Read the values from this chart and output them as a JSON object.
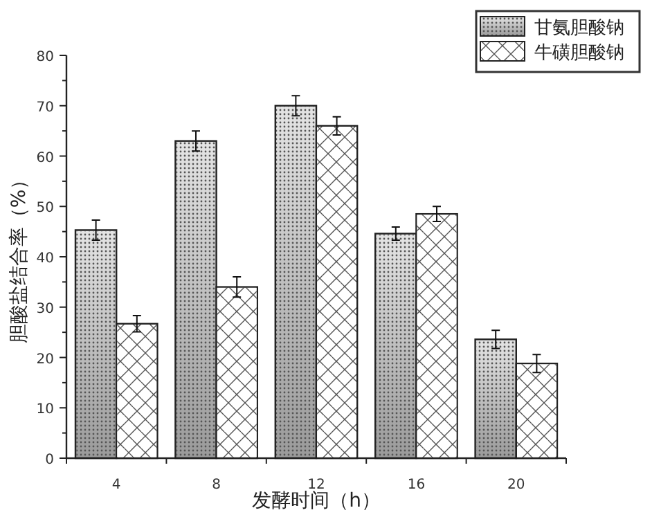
{
  "chart_data": {
    "type": "bar",
    "xlabel": "发酵时间（h）",
    "ylabel": "胆酸盐结合率（%）",
    "categories": [
      "4",
      "8",
      "12",
      "16",
      "20"
    ],
    "series": [
      {
        "name": "甘氨胆酸钠",
        "color": "#9a9a9a",
        "values": [
          45.3,
          63,
          70,
          44.6,
          23.6
        ],
        "errors": [
          2,
          2,
          2,
          1.3,
          1.8
        ]
      },
      {
        "name": "牛磺胆酸钠",
        "color": "#ffffff",
        "values": [
          26.7,
          34,
          66,
          48.5,
          18.8
        ],
        "errors": [
          1.6,
          2,
          1.8,
          1.5,
          1.8
        ]
      }
    ],
    "ylim": [
      0,
      80
    ],
    "yticks": [
      0,
      {
        "value": 5,
        "label": null
      },
      10,
      {
        "value": 15,
        "label": null
      },
      20,
      {
        "value": 25,
        "label": null
      },
      30,
      {
        "value": 35,
        "label": null
      },
      40,
      {
        "value": 45,
        "label": null
      },
      50,
      {
        "value": 55,
        "label": null
      },
      60,
      {
        "value": 65,
        "label": null
      },
      70,
      {
        "value": 75,
        "label": null
      },
      80
    ],
    "legend": "top right",
    "grid": false
  }
}
